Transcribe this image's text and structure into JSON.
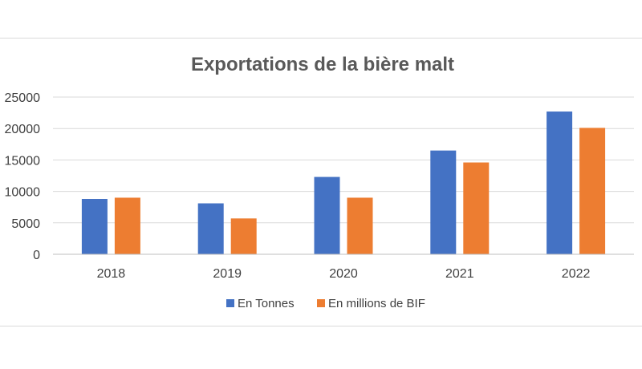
{
  "chart_data": {
    "type": "bar",
    "title": "Exportations de la bière malt",
    "xlabel": "",
    "ylabel": "",
    "categories": [
      "2018",
      "2019",
      "2020",
      "2021",
      "2022"
    ],
    "series": [
      {
        "name": "En Tonnes",
        "color": "#4472C4",
        "values": [
          8800,
          8100,
          12300,
          16500,
          22700
        ]
      },
      {
        "name": "En millions de BIF",
        "color": "#ED7D31",
        "values": [
          9000,
          5700,
          9000,
          14600,
          20100
        ]
      }
    ],
    "ylim": [
      0,
      25000
    ],
    "yticks": [
      "0",
      "5000",
      "10000",
      "15000",
      "20000",
      "25000"
    ],
    "grid": true,
    "legend_position": "bottom"
  }
}
